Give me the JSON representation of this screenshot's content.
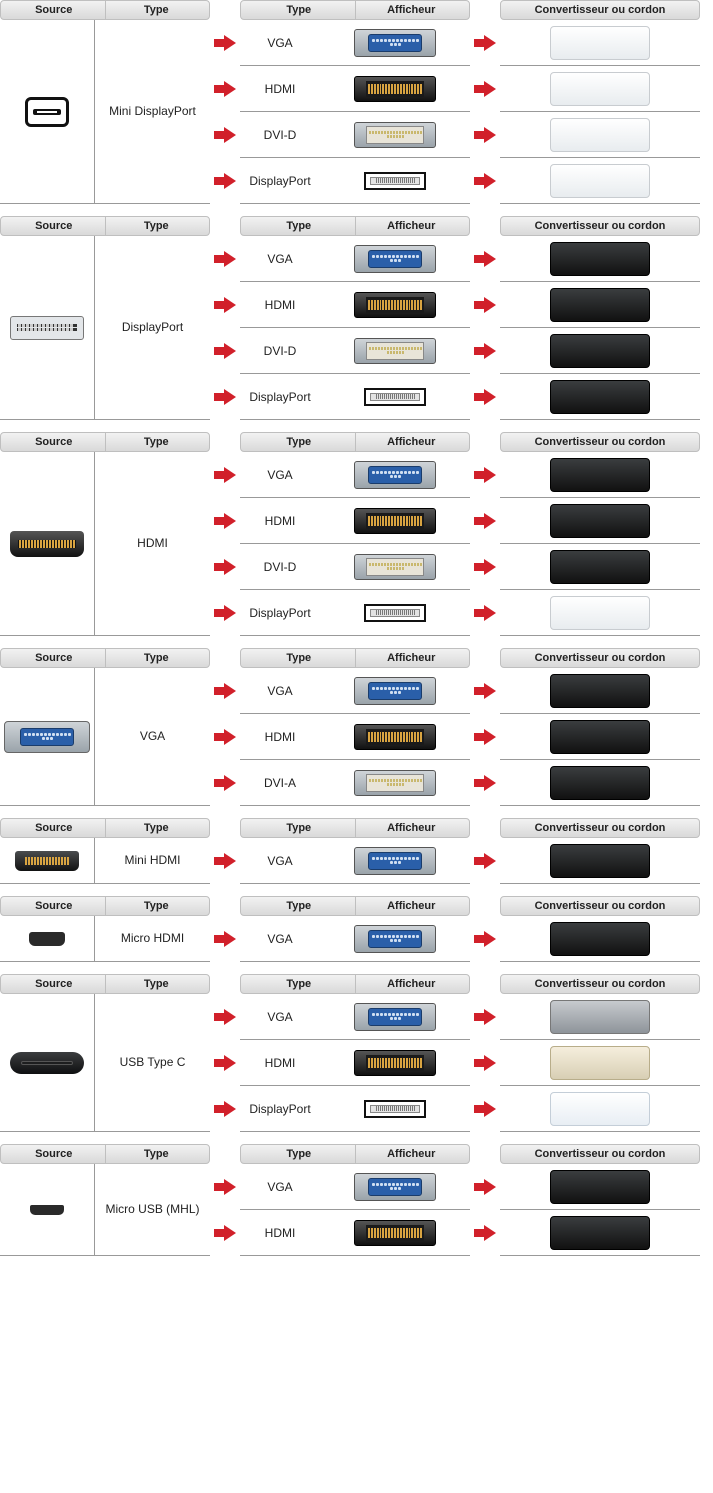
{
  "colors": {
    "arrow": "#d1202a",
    "header_bg_top": "#f2f2f2",
    "header_bg_bot": "#d9d9d9",
    "header_border": "#bfbfbf",
    "row_border": "#999999",
    "vga_blue": "#2a5fa9",
    "hdmi_gold": "#d9a441"
  },
  "headers": {
    "source": "Source",
    "type": "Type",
    "afficheur": "Afficheur",
    "convertisseur": "Convertisseur ou cordon"
  },
  "sections": [
    {
      "source_type": "Mini DisplayPort",
      "source_icon": "mini-dp",
      "targets": [
        {
          "type": "VGA",
          "icon": "vga",
          "converter_style": "conv-white"
        },
        {
          "type": "HDMI",
          "icon": "hdmi",
          "converter_style": "conv-white"
        },
        {
          "type": "DVI-D",
          "icon": "dvi",
          "converter_style": "conv-white"
        },
        {
          "type": "DisplayPort",
          "icon": "dp",
          "converter_style": "conv-white"
        }
      ]
    },
    {
      "source_type": "DisplayPort",
      "source_icon": "dp",
      "targets": [
        {
          "type": "VGA",
          "icon": "vga",
          "converter_style": "conv-black"
        },
        {
          "type": "HDMI",
          "icon": "hdmi",
          "converter_style": "conv-black"
        },
        {
          "type": "DVI-D",
          "icon": "dvi",
          "converter_style": "conv-black"
        },
        {
          "type": "DisplayPort",
          "icon": "dp",
          "converter_style": "conv-black"
        }
      ]
    },
    {
      "source_type": "HDMI",
      "source_icon": "hdmi",
      "targets": [
        {
          "type": "VGA",
          "icon": "vga",
          "converter_style": "conv-black"
        },
        {
          "type": "HDMI",
          "icon": "hdmi",
          "converter_style": "conv-black"
        },
        {
          "type": "DVI-D",
          "icon": "dvi",
          "converter_style": "conv-black"
        },
        {
          "type": "DisplayPort",
          "icon": "dp",
          "converter_style": "conv-white"
        }
      ]
    },
    {
      "source_type": "VGA",
      "source_icon": "vga",
      "targets": [
        {
          "type": "VGA",
          "icon": "vga",
          "converter_style": "conv-black"
        },
        {
          "type": "HDMI",
          "icon": "hdmi",
          "converter_style": "conv-black"
        },
        {
          "type": "DVI-A",
          "icon": "dvi",
          "converter_style": "conv-black"
        }
      ]
    },
    {
      "source_type": "Mini HDMI",
      "source_icon": "mini-hdmi",
      "targets": [
        {
          "type": "VGA",
          "icon": "vga",
          "converter_style": "conv-black"
        }
      ]
    },
    {
      "source_type": "Micro HDMI",
      "source_icon": "micro-hdmi",
      "targets": [
        {
          "type": "VGA",
          "icon": "vga",
          "converter_style": "conv-black"
        }
      ]
    },
    {
      "source_type": "USB Type C",
      "source_icon": "usb-c",
      "targets": [
        {
          "type": "VGA",
          "icon": "vga",
          "converter_style": "conv-grey"
        },
        {
          "type": "HDMI",
          "icon": "hdmi",
          "converter_style": "conv-beige"
        },
        {
          "type": "DisplayPort",
          "icon": "dp",
          "converter_style": "conv-pale"
        }
      ]
    },
    {
      "source_type": "Micro USB (MHL)",
      "source_icon": "micro-usb",
      "targets": [
        {
          "type": "VGA",
          "icon": "vga",
          "converter_style": "conv-black"
        },
        {
          "type": "HDMI",
          "icon": "hdmi",
          "converter_style": "conv-black"
        }
      ]
    }
  ]
}
